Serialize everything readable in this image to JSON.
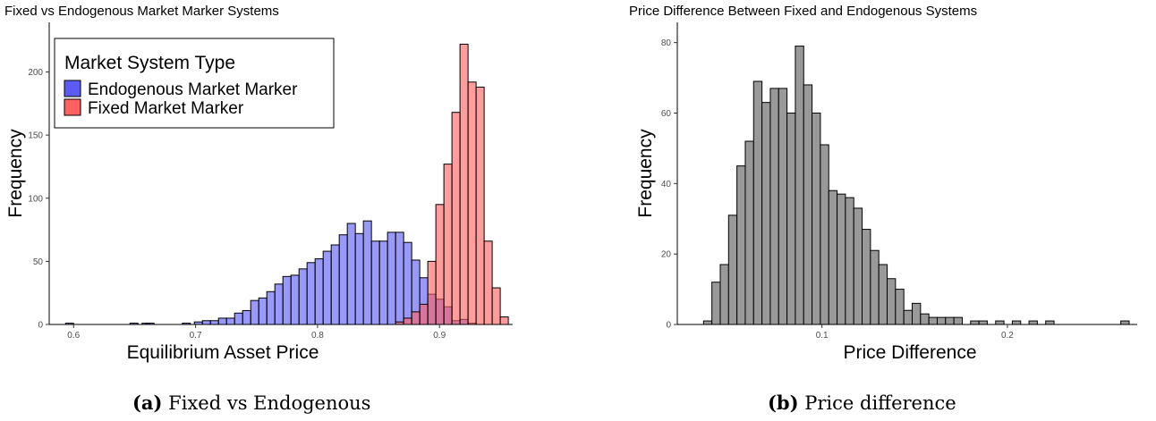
{
  "chart_data": [
    {
      "type": "bar",
      "subtype": "histogram",
      "title": "Fixed vs Endogenous Market Marker Systems",
      "xlabel": "Equilibrium Asset Price",
      "ylabel": "Frequency",
      "xlim": [
        0.58,
        0.96
      ],
      "ylim": [
        0,
        240
      ],
      "xticks": [
        0.6,
        0.7,
        0.8,
        0.9
      ],
      "yticks": [
        0,
        50,
        100,
        150,
        200
      ],
      "bin_width": 0.0066,
      "grid": false,
      "legend": {
        "title": "Market System Type",
        "position": "top-left",
        "entries": [
          "Endogenous Market Marker",
          "Fixed Market Marker"
        ]
      },
      "series": [
        {
          "name": "Endogenous Market Marker",
          "color": "#5b5bf5",
          "bins": [
            [
              0.5967,
              1
            ],
            [
              0.6495,
              1
            ],
            [
              0.6594,
              1
            ],
            [
              0.6627,
              1
            ],
            [
              0.6924,
              1
            ],
            [
              0.7023,
              2
            ],
            [
              0.7089,
              3
            ],
            [
              0.7155,
              3
            ],
            [
              0.7221,
              5
            ],
            [
              0.7287,
              5
            ],
            [
              0.7353,
              9
            ],
            [
              0.7419,
              11
            ],
            [
              0.7485,
              19
            ],
            [
              0.7551,
              21
            ],
            [
              0.7617,
              26
            ],
            [
              0.7683,
              32
            ],
            [
              0.7749,
              38
            ],
            [
              0.7815,
              39
            ],
            [
              0.7881,
              44
            ],
            [
              0.7947,
              49
            ],
            [
              0.8013,
              52
            ],
            [
              0.8079,
              58
            ],
            [
              0.8145,
              63
            ],
            [
              0.8211,
              71
            ],
            [
              0.8277,
              80
            ],
            [
              0.8343,
              72
            ],
            [
              0.8409,
              82
            ],
            [
              0.8475,
              66
            ],
            [
              0.8541,
              66
            ],
            [
              0.8607,
              73
            ],
            [
              0.8673,
              73
            ],
            [
              0.8739,
              65
            ],
            [
              0.8805,
              51
            ],
            [
              0.8871,
              37
            ],
            [
              0.8937,
              24
            ],
            [
              0.9003,
              20
            ],
            [
              0.9069,
              14
            ],
            [
              0.9135,
              3
            ],
            [
              0.9201,
              4
            ],
            [
              0.9267,
              1
            ]
          ]
        },
        {
          "name": "Fixed Market Marker",
          "color": "#ff6060",
          "bins": [
            [
              0.8673,
              2
            ],
            [
              0.8739,
              5
            ],
            [
              0.8805,
              10
            ],
            [
              0.8871,
              16
            ],
            [
              0.8937,
              50
            ],
            [
              0.9003,
              95
            ],
            [
              0.9069,
              127
            ],
            [
              0.9135,
              168
            ],
            [
              0.9201,
              222
            ],
            [
              0.9267,
              192
            ],
            [
              0.9333,
              188
            ],
            [
              0.9399,
              66
            ],
            [
              0.9465,
              29
            ],
            [
              0.9531,
              6
            ]
          ]
        }
      ]
    },
    {
      "type": "bar",
      "subtype": "histogram",
      "title": "Price Difference Between Fixed and Endogenous Systems",
      "xlabel": "Price Difference",
      "ylabel": "Frequency",
      "xlim": [
        0.022,
        0.27
      ],
      "ylim": [
        0,
        86
      ],
      "xticks": [
        0.1,
        0.2
      ],
      "yticks": [
        0,
        20,
        40,
        60,
        80
      ],
      "bin_width": 0.00451,
      "grid": false,
      "series": [
        {
          "color": "#999999",
          "bins": [
            [
              0.0384,
              1
            ],
            [
              0.0429,
              12
            ],
            [
              0.0474,
              17
            ],
            [
              0.0519,
              31
            ],
            [
              0.0564,
              45
            ],
            [
              0.0609,
              52
            ],
            [
              0.0654,
              69
            ],
            [
              0.0699,
              63
            ],
            [
              0.0744,
              67
            ],
            [
              0.0789,
              67
            ],
            [
              0.0834,
              60
            ],
            [
              0.0879,
              79
            ],
            [
              0.0924,
              68
            ],
            [
              0.0969,
              60
            ],
            [
              0.1014,
              51
            ],
            [
              0.1059,
              38
            ],
            [
              0.1104,
              37
            ],
            [
              0.1149,
              36
            ],
            [
              0.1194,
              33
            ],
            [
              0.1239,
              27
            ],
            [
              0.1284,
              21
            ],
            [
              0.1329,
              17
            ],
            [
              0.1374,
              13
            ],
            [
              0.1419,
              10
            ],
            [
              0.1464,
              4
            ],
            [
              0.1509,
              6
            ],
            [
              0.1554,
              3
            ],
            [
              0.1599,
              2
            ],
            [
              0.1644,
              2
            ],
            [
              0.1689,
              2
            ],
            [
              0.1734,
              2
            ],
            [
              0.1824,
              1
            ],
            [
              0.1869,
              1
            ],
            [
              0.1959,
              1
            ],
            [
              0.2049,
              1
            ],
            [
              0.2139,
              1
            ],
            [
              0.2229,
              1
            ],
            [
              0.2634,
              1
            ]
          ]
        }
      ]
    }
  ],
  "captions": [
    {
      "tag": "(a)",
      "text": "Fixed vs Endogenous"
    },
    {
      "tag": "(b)",
      "text": "Price difference"
    }
  ]
}
